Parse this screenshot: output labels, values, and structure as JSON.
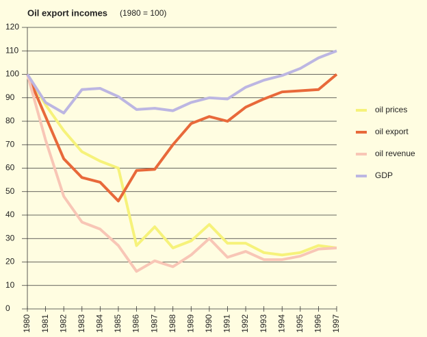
{
  "chart_data": {
    "type": "line",
    "title": "Oil export incomes",
    "subtitle": "(1980 = 100)",
    "categories": [
      "1980",
      "1981",
      "1982",
      "1983",
      "1984",
      "1985",
      "1986",
      "1987",
      "1988",
      "1989",
      "1990",
      "1991",
      "1992",
      "1993",
      "1994",
      "1995",
      "1996",
      "1997"
    ],
    "series": [
      {
        "name": "oil prices",
        "color": "#f6f27a",
        "values": [
          100,
          87,
          76,
          67,
          63,
          60,
          27,
          35,
          26,
          29,
          36,
          28,
          28,
          24,
          23,
          24,
          27,
          26
        ]
      },
      {
        "name": "oil export",
        "color": "#e8693a",
        "values": [
          100,
          82,
          64,
          56,
          54,
          46,
          59,
          59.5,
          70,
          79,
          82,
          80,
          86,
          89.5,
          92.5,
          93,
          93.5,
          100
        ]
      },
      {
        "name": "oil revenue",
        "color": "#f8c6b6",
        "values": [
          100,
          72,
          48,
          37,
          34,
          27,
          16,
          20.5,
          18,
          23,
          30,
          22,
          24.5,
          21,
          21,
          22.5,
          25.5,
          26
        ]
      },
      {
        "name": "GDP",
        "color": "#bcb6e2",
        "values": [
          100,
          88,
          83.5,
          93.5,
          94,
          90.5,
          85,
          85.5,
          84.5,
          88,
          90,
          89.5,
          94.5,
          97.5,
          99.5,
          102.5,
          107,
          110
        ]
      }
    ],
    "ylim": [
      0,
      120
    ],
    "yticks": [
      0,
      10,
      20,
      30,
      40,
      50,
      60,
      70,
      80,
      90,
      100,
      110,
      120
    ],
    "grid": true,
    "legend": "right"
  }
}
